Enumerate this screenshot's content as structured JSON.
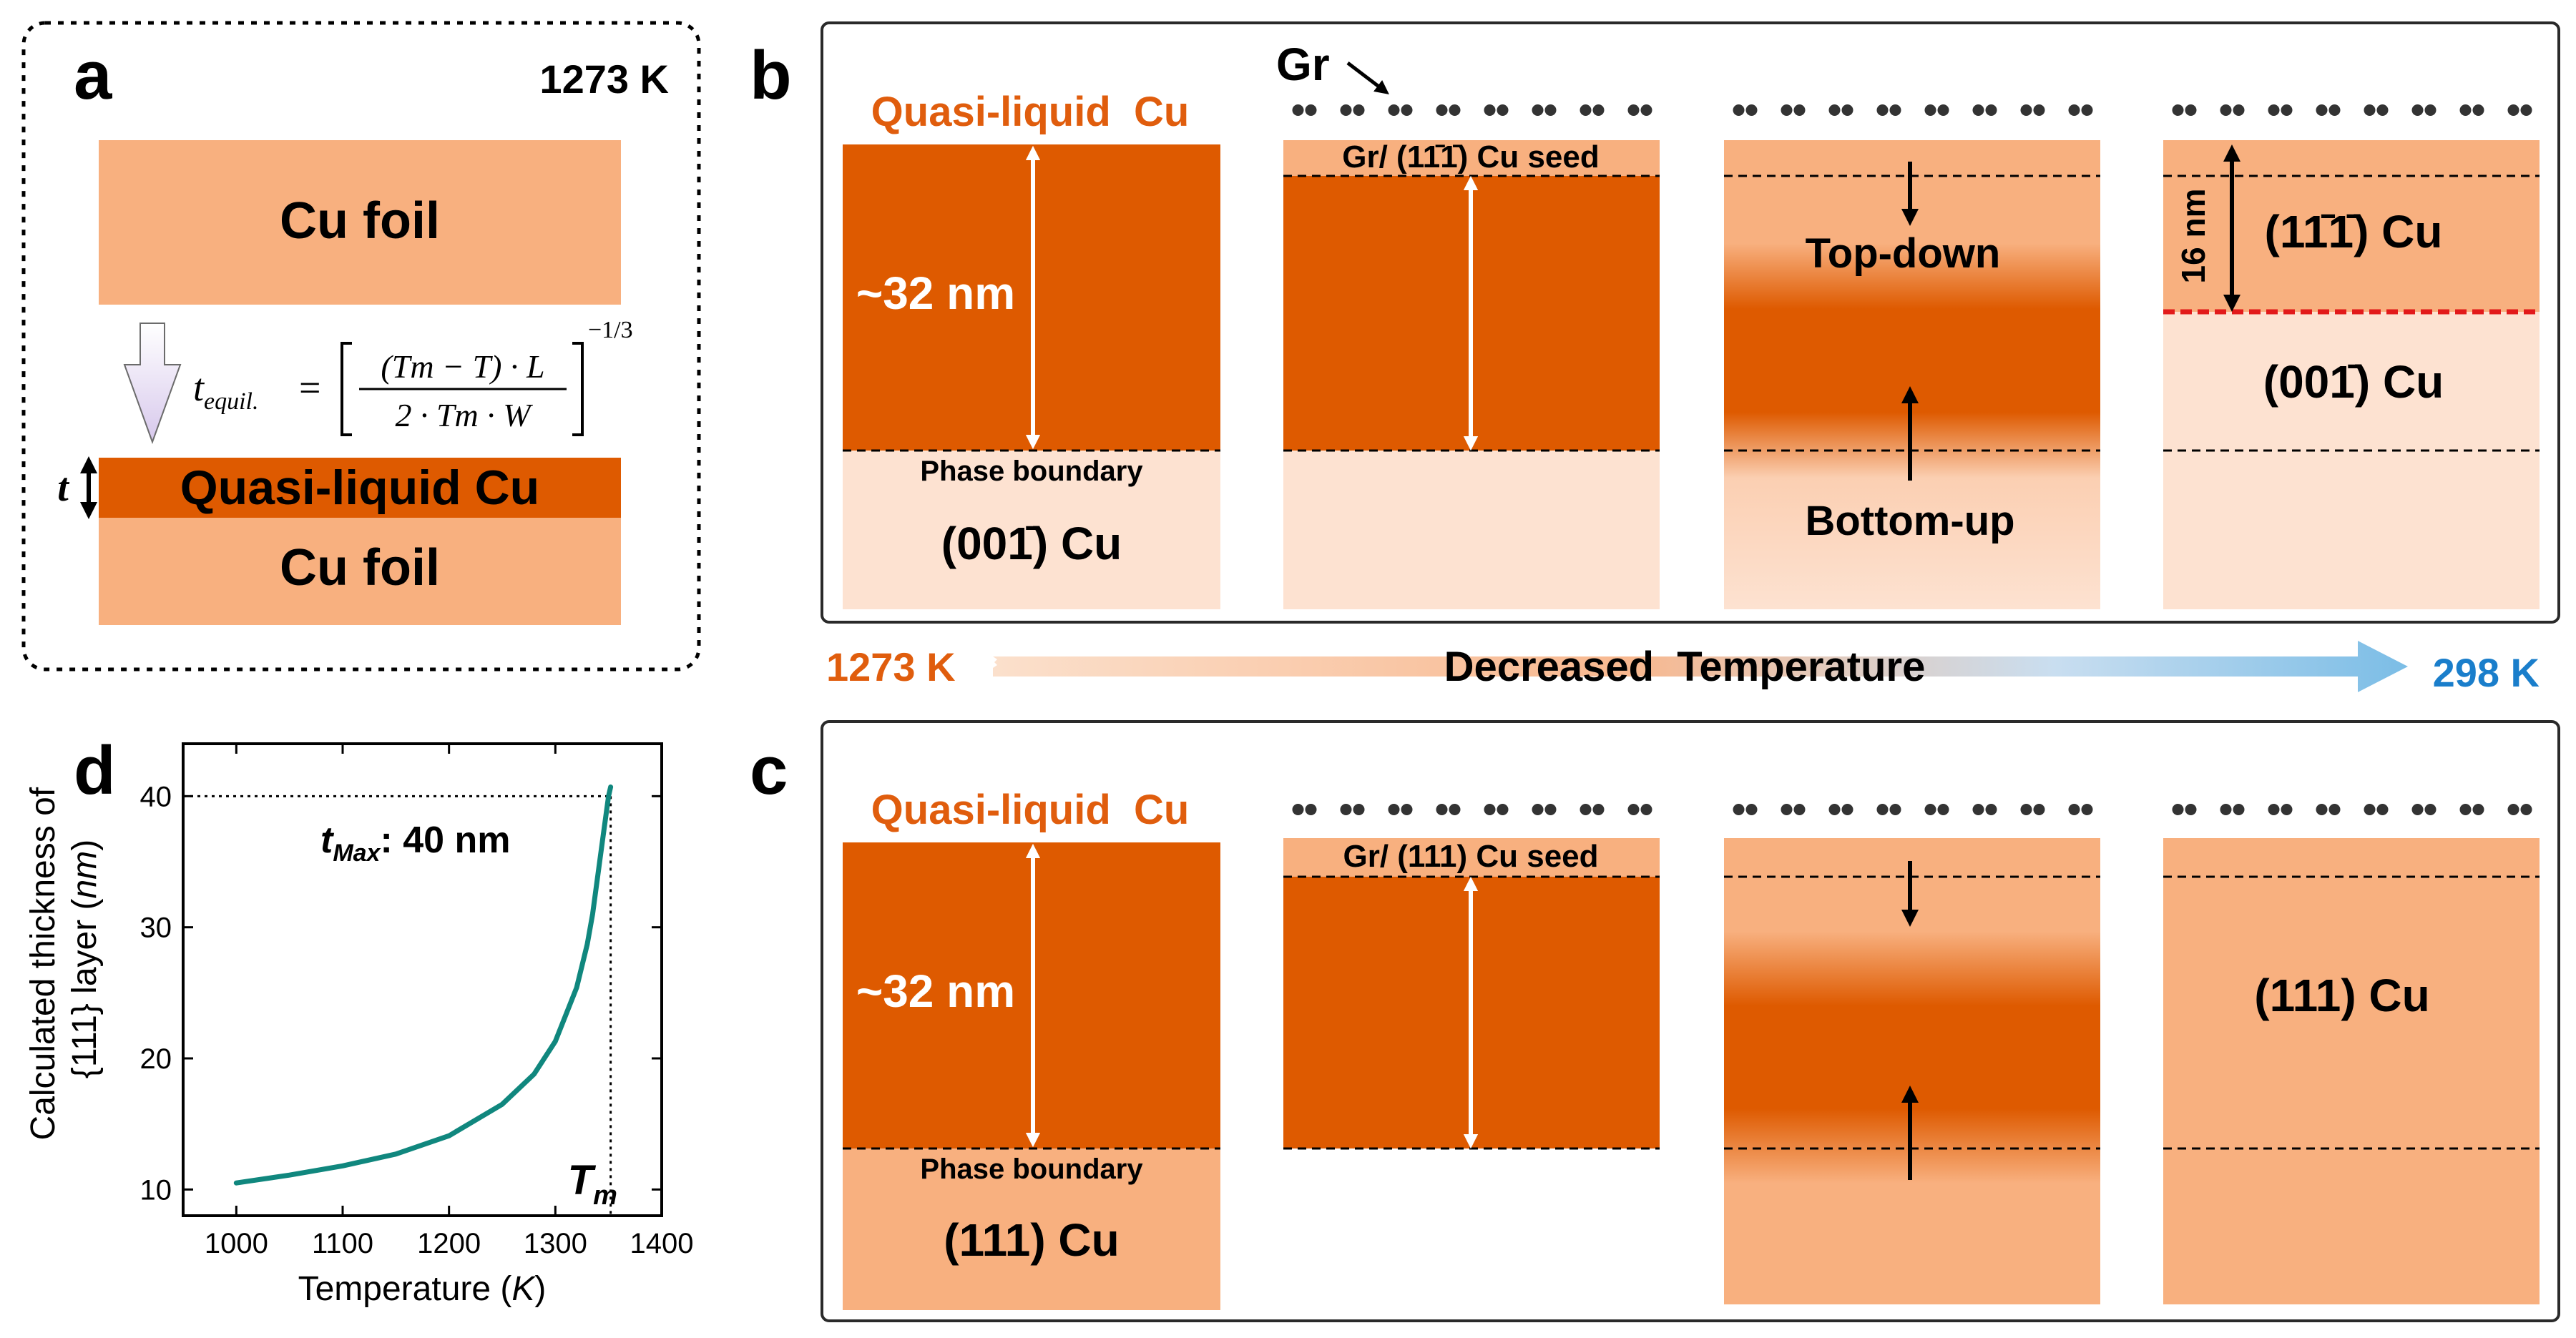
{
  "colors": {
    "dark_cu": "#de5a00",
    "mid_cu": "#f8b07f",
    "light_cu": "#fde2d1",
    "teal": "#10877e",
    "blue_text": "#1a7ecb",
    "orange_text": "#e05d0d",
    "red_dash": "#e21a1a"
  },
  "panel_a": {
    "letter": "a",
    "temperature": "1273 K",
    "cu_foil_top": "Cu foil",
    "t_symbol": "t",
    "quasi_liquid": "Quasi-liquid Cu",
    "cu_foil_bottom": "Cu foil",
    "formula": {
      "lhs": "t",
      "lhs_sub": "equil.",
      "equals": "=",
      "numerator": "(Tm − T) · L",
      "denominator": "2 · Tm · W",
      "exponent": "−1/3"
    }
  },
  "panel_b": {
    "letter": "b",
    "gr_label": "Gr",
    "quasi_liquid_title": "Quasi-liquid  Cu",
    "thickness": "~32 nm",
    "phase_boundary": "Phase boundary",
    "col1_bottom": "(001̄) Cu",
    "seed_label": "Gr/ (11̄1̄) Cu seed",
    "top_down": "Top-down",
    "bottom_up": "Bottom-up",
    "depth": "16 nm",
    "col4_top": "(11̄1̄) Cu",
    "col4_bottom": "(001̄) Cu"
  },
  "temperature_arrow": {
    "start": "1273 K",
    "label": "Decreased  Temperature",
    "end": "298 K"
  },
  "panel_c": {
    "letter": "c",
    "quasi_liquid_title": "Quasi-liquid  Cu",
    "thickness": "~32 nm",
    "phase_boundary": "Phase boundary",
    "col1_bottom": "(111) Cu",
    "seed_label": "Gr/ (111) Cu seed",
    "col4_label": "(111) Cu"
  },
  "panel_d": {
    "letter": "d",
    "annotation_prefix": "t",
    "annotation_sub": "Max",
    "annotation_value": ": 40 nm",
    "tm_label": "T",
    "tm_sub": "m"
  },
  "chart_data": {
    "type": "line",
    "title": "",
    "xlabel": "Temperature (K)",
    "ylabel": "Calculated thickness of {111} layer (nm)",
    "xlim": [
      950,
      1400
    ],
    "ylim": [
      8,
      44
    ],
    "xticks": [
      1000,
      1100,
      1200,
      1300,
      1400
    ],
    "yticks": [
      10,
      20,
      30,
      40
    ],
    "series": [
      {
        "name": "thickness",
        "x": [
          1000,
          1050,
          1100,
          1150,
          1200,
          1250,
          1280,
          1300,
          1320,
          1330,
          1335,
          1340,
          1345,
          1350,
          1352
        ],
        "y": [
          10.5,
          11.1,
          11.8,
          12.7,
          14.1,
          16.5,
          18.8,
          21.3,
          25.4,
          28.7,
          31.0,
          34.0,
          37.0,
          40.0,
          40.7
        ]
      }
    ],
    "reference_lines": [
      {
        "axis": "y",
        "value": 40
      },
      {
        "axis": "x",
        "value": 1352
      }
    ]
  }
}
